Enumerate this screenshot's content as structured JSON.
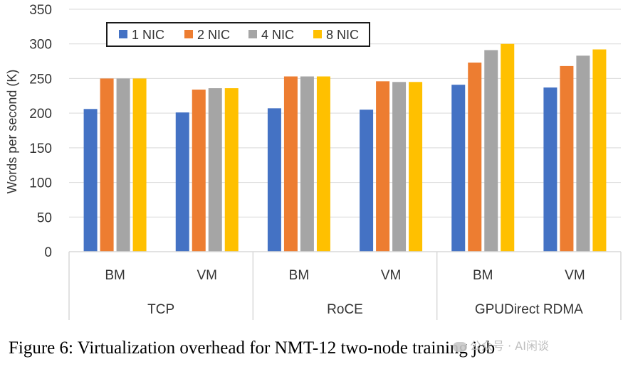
{
  "chart_data": {
    "type": "bar",
    "title": "",
    "ylabel": "Words per second (K)",
    "xlabel": "",
    "ylim": [
      0,
      350
    ],
    "yticks": [
      0,
      50,
      100,
      150,
      200,
      250,
      300,
      350
    ],
    "grid": true,
    "legend_position": "top-left",
    "groups": [
      "TCP",
      "RoCE",
      "GPUDirect RDMA"
    ],
    "categories": [
      "BM",
      "VM",
      "BM",
      "VM",
      "BM",
      "VM"
    ],
    "series": [
      {
        "name": "1 NIC",
        "color": "#4472C4",
        "values": [
          206,
          201,
          207,
          205,
          241,
          237
        ]
      },
      {
        "name": "2 NIC",
        "color": "#ED7D31",
        "values": [
          250,
          234,
          253,
          246,
          273,
          268
        ]
      },
      {
        "name": "4 NIC",
        "color": "#A5A5A5",
        "values": [
          250,
          236,
          253,
          245,
          291,
          283
        ]
      },
      {
        "name": "8 NIC",
        "color": "#FFC000",
        "values": [
          250,
          236,
          253,
          245,
          300,
          292
        ]
      }
    ]
  },
  "caption": "Figure 6: Virtualization overhead for NMT-12 two-node training job",
  "watermark": "公众号 · AI闲谈"
}
